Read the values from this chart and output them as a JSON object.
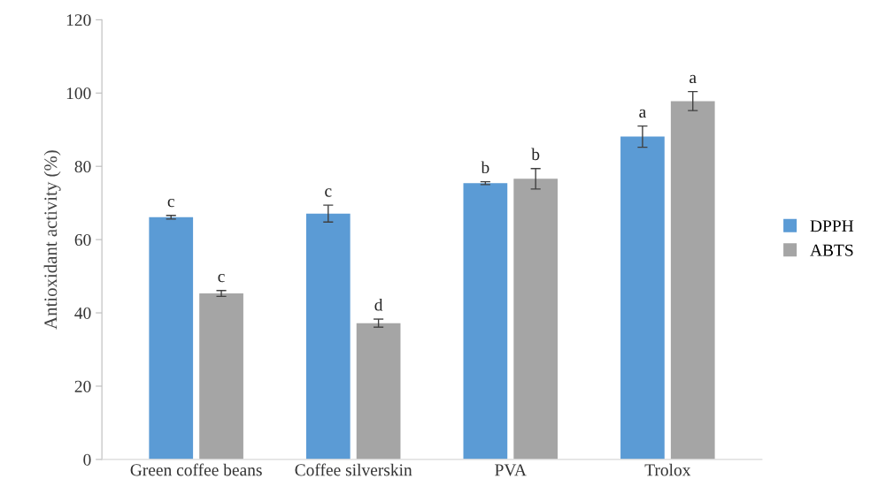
{
  "chart_data": {
    "type": "bar",
    "ylabel": "Antioxidant activity (%)",
    "categories": [
      "Green coffee beans",
      "Coffee silverskin",
      "PVA",
      "Trolox"
    ],
    "series": [
      {
        "name": "DPPH",
        "color": "#5b9bd5",
        "values": [
          66.1,
          67.1,
          75.4,
          88.1
        ],
        "errors": [
          0.5,
          2.3,
          0.4,
          2.9
        ]
      },
      {
        "name": "ABTS",
        "color": "#a5a5a5",
        "values": [
          45.3,
          37.2,
          76.6,
          97.8
        ],
        "errors": [
          0.8,
          1.1,
          2.8,
          2.6
        ]
      }
    ],
    "ylim": [
      0,
      120
    ],
    "yticks": [
      0,
      20,
      40,
      60,
      80,
      100,
      120
    ],
    "grid": false,
    "legend": "right",
    "annotations": [
      {
        "text": "c",
        "x": "Green coffee beans",
        "y": 66.1
      },
      {
        "text": "c",
        "x": "Green coffee beans",
        "y": 45.3
      },
      {
        "text": "c",
        "x": "Coffee silverskin",
        "y": 67.1
      },
      {
        "text": "d",
        "x": "Coffee silverskin",
        "y": 37.2
      },
      {
        "text": "b",
        "x": "PVA",
        "y": 75.4
      },
      {
        "text": "b",
        "x": "PVA",
        "y": 76.6
      },
      {
        "text": "a",
        "x": "Trolox",
        "y": 88.1
      },
      {
        "text": "a",
        "x": "Trolox",
        "y": 97.8
      }
    ]
  }
}
